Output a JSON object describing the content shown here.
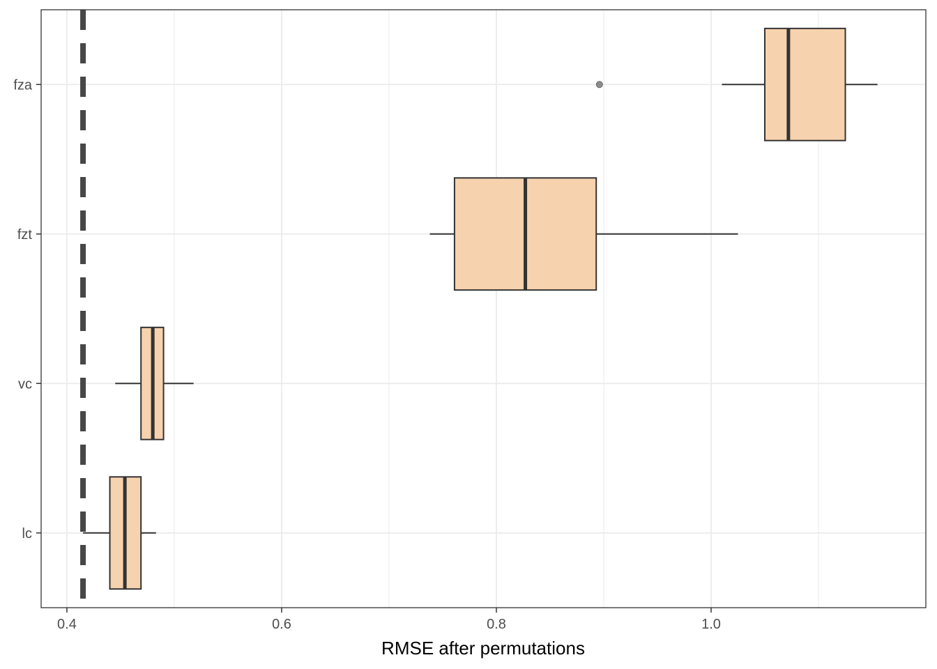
{
  "chart_data": {
    "type": "boxplot",
    "orientation": "horizontal",
    "title": "",
    "xlabel": "RMSE after permutations",
    "ylabel": "",
    "xlim": [
      0.376,
      1.2
    ],
    "x_major_ticks": [
      0.4,
      0.6,
      0.8,
      1.0
    ],
    "x_tick_labels": [
      "0.4",
      "0.6",
      "0.8",
      "1.0"
    ],
    "x_minor_ticks": [
      0.5,
      0.7,
      0.9,
      1.1
    ],
    "categories": [
      "lc",
      "vc",
      "fzt",
      "fza"
    ],
    "boxes": [
      {
        "category": "lc",
        "whisker_low": 0.415,
        "q1": 0.44,
        "median": 0.454,
        "q3": 0.469,
        "whisker_high": 0.483,
        "outliers": []
      },
      {
        "category": "vc",
        "whisker_low": 0.445,
        "q1": 0.469,
        "median": 0.48,
        "q3": 0.49,
        "whisker_high": 0.518,
        "outliers": []
      },
      {
        "category": "fzt",
        "whisker_low": 0.738,
        "q1": 0.761,
        "median": 0.827,
        "q3": 0.893,
        "whisker_high": 1.025,
        "outliers": []
      },
      {
        "category": "fza",
        "whisker_low": 1.01,
        "q1": 1.05,
        "median": 1.072,
        "q3": 1.125,
        "whisker_high": 1.155,
        "outliers": [
          0.896
        ]
      }
    ],
    "reference_line": {
      "x": 0.415,
      "style": "dashed"
    },
    "grid": true,
    "legend": "none",
    "colors": {
      "box_fill": "#f7d2ae",
      "box_stroke": "#333333",
      "reference_line": "#474747",
      "grid": "#ebebeb",
      "outlier": "#8c8c8c"
    }
  }
}
